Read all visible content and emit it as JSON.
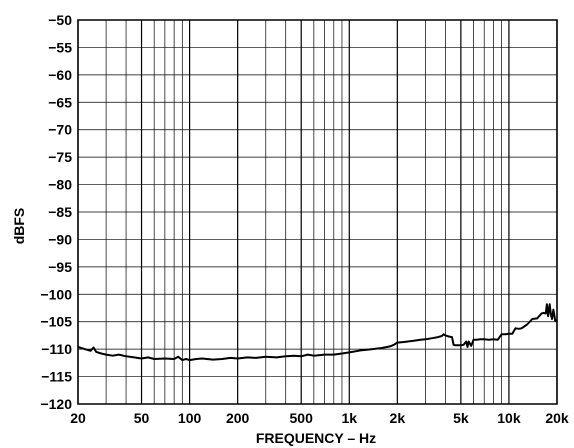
{
  "chart_data": {
    "type": "line",
    "title": "",
    "xlabel": "FREQUENCY – Hz",
    "ylabel": "dBFS",
    "x_scale": "log",
    "xlim": [
      20,
      20000
    ],
    "ylim": [
      -120,
      -50
    ],
    "grid": true,
    "x_tick_labels": [
      {
        "value": 20,
        "label": "20"
      },
      {
        "value": 50,
        "label": "50"
      },
      {
        "value": 100,
        "label": "100"
      },
      {
        "value": 200,
        "label": "200"
      },
      {
        "value": 500,
        "label": "500"
      },
      {
        "value": 1000,
        "label": "1k"
      },
      {
        "value": 2000,
        "label": "2k"
      },
      {
        "value": 5000,
        "label": "5k"
      },
      {
        "value": 10000,
        "label": "10k"
      },
      {
        "value": 20000,
        "label": "20k"
      }
    ],
    "y_ticks": [
      -50,
      -55,
      -60,
      -65,
      -70,
      -75,
      -80,
      -85,
      -90,
      -95,
      -100,
      -105,
      -110,
      -115,
      -120
    ],
    "series": [
      {
        "color": "#000000",
        "x": [
          20,
          22,
          24,
          25,
          26,
          28,
          30,
          33,
          36,
          40,
          45,
          50,
          55,
          60,
          70,
          80,
          85,
          90,
          95,
          100,
          110,
          120,
          140,
          160,
          180,
          200,
          230,
          260,
          300,
          350,
          400,
          450,
          500,
          550,
          600,
          700,
          800,
          900,
          1000,
          1200,
          1400,
          1600,
          1800,
          1900,
          2000,
          2200,
          2500,
          2800,
          3000,
          3300,
          3600,
          3800,
          3900,
          4000,
          4200,
          4400,
          4500,
          4600,
          4800,
          5000,
          5200,
          5400,
          5500,
          5600,
          5800,
          6000,
          6300,
          6600,
          7000,
          7500,
          8000,
          8500,
          9000,
          9500,
          10000,
          10500,
          11000,
          11500,
          12000,
          13000,
          14000,
          15000,
          16000,
          16500,
          17000,
          17300,
          17600,
          18000,
          18300,
          18600,
          19000,
          19500,
          20000
        ],
        "values": [
          -109.6,
          -110.0,
          -110.3,
          -109.7,
          -110.5,
          -110.8,
          -111.0,
          -111.2,
          -111.0,
          -111.3,
          -111.5,
          -111.7,
          -111.5,
          -111.8,
          -111.7,
          -111.8,
          -111.4,
          -112.0,
          -111.8,
          -112.0,
          -111.8,
          -111.7,
          -111.9,
          -111.8,
          -111.6,
          -111.7,
          -111.5,
          -111.6,
          -111.4,
          -111.5,
          -111.3,
          -111.2,
          -111.3,
          -111.0,
          -111.2,
          -111.0,
          -111.0,
          -110.8,
          -110.6,
          -110.2,
          -110.0,
          -109.8,
          -109.5,
          -109.2,
          -108.8,
          -108.7,
          -108.5,
          -108.3,
          -108.2,
          -108.0,
          -107.8,
          -107.6,
          -107.3,
          -107.5,
          -107.7,
          -107.8,
          -109.2,
          -109.3,
          -109.3,
          -109.3,
          -109.2,
          -108.6,
          -109.6,
          -108.6,
          -109.4,
          -108.3,
          -108.3,
          -108.2,
          -108.2,
          -108.3,
          -108.2,
          -108.3,
          -107.3,
          -107.3,
          -107.2,
          -107.2,
          -106.2,
          -106.3,
          -106.2,
          -105.5,
          -104.5,
          -104.4,
          -103.5,
          -103.4,
          -103.5,
          -101.8,
          -104.0,
          -101.8,
          -103.6,
          -104.5,
          -102.8,
          -104.8,
          -104.8
        ]
      }
    ]
  }
}
